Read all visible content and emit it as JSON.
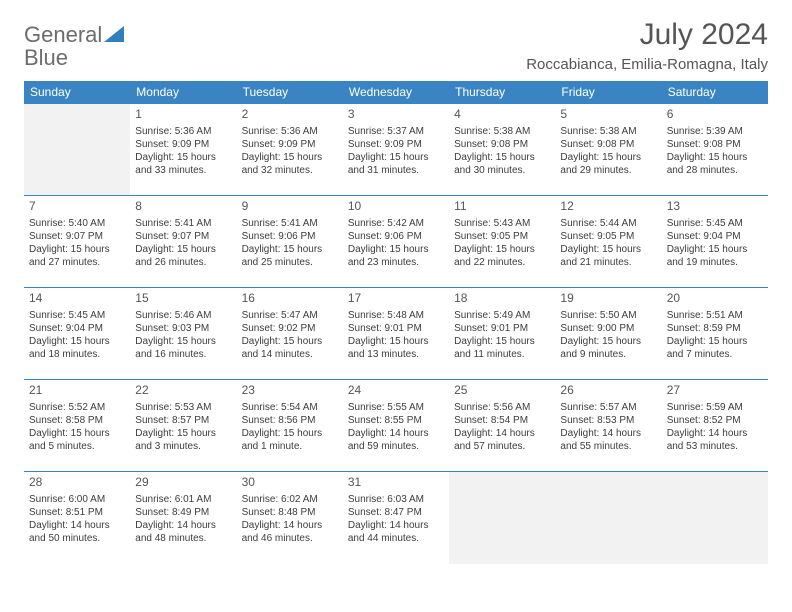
{
  "brand": {
    "part1": "General",
    "part2": "Blue"
  },
  "title": "July 2024",
  "location": "Roccabianca, Emilia-Romagna, Italy",
  "colors": {
    "header_bg": "#3b84c4",
    "header_text": "#ffffff",
    "border": "#3b84c4",
    "text": "#3d3d3d",
    "title_text": "#555555",
    "logo_grey": "#6c6c6c",
    "logo_blue": "#2f7fc1",
    "empty_bg": "#f2f2f2"
  },
  "dayNames": [
    "Sunday",
    "Monday",
    "Tuesday",
    "Wednesday",
    "Thursday",
    "Friday",
    "Saturday"
  ],
  "weeks": [
    [
      null,
      {
        "n": "1",
        "sr": "5:36 AM",
        "ss": "9:09 PM",
        "dl": "15 hours and 33 minutes."
      },
      {
        "n": "2",
        "sr": "5:36 AM",
        "ss": "9:09 PM",
        "dl": "15 hours and 32 minutes."
      },
      {
        "n": "3",
        "sr": "5:37 AM",
        "ss": "9:09 PM",
        "dl": "15 hours and 31 minutes."
      },
      {
        "n": "4",
        "sr": "5:38 AM",
        "ss": "9:08 PM",
        "dl": "15 hours and 30 minutes."
      },
      {
        "n": "5",
        "sr": "5:38 AM",
        "ss": "9:08 PM",
        "dl": "15 hours and 29 minutes."
      },
      {
        "n": "6",
        "sr": "5:39 AM",
        "ss": "9:08 PM",
        "dl": "15 hours and 28 minutes."
      }
    ],
    [
      {
        "n": "7",
        "sr": "5:40 AM",
        "ss": "9:07 PM",
        "dl": "15 hours and 27 minutes."
      },
      {
        "n": "8",
        "sr": "5:41 AM",
        "ss": "9:07 PM",
        "dl": "15 hours and 26 minutes."
      },
      {
        "n": "9",
        "sr": "5:41 AM",
        "ss": "9:06 PM",
        "dl": "15 hours and 25 minutes."
      },
      {
        "n": "10",
        "sr": "5:42 AM",
        "ss": "9:06 PM",
        "dl": "15 hours and 23 minutes."
      },
      {
        "n": "11",
        "sr": "5:43 AM",
        "ss": "9:05 PM",
        "dl": "15 hours and 22 minutes."
      },
      {
        "n": "12",
        "sr": "5:44 AM",
        "ss": "9:05 PM",
        "dl": "15 hours and 21 minutes."
      },
      {
        "n": "13",
        "sr": "5:45 AM",
        "ss": "9:04 PM",
        "dl": "15 hours and 19 minutes."
      }
    ],
    [
      {
        "n": "14",
        "sr": "5:45 AM",
        "ss": "9:04 PM",
        "dl": "15 hours and 18 minutes."
      },
      {
        "n": "15",
        "sr": "5:46 AM",
        "ss": "9:03 PM",
        "dl": "15 hours and 16 minutes."
      },
      {
        "n": "16",
        "sr": "5:47 AM",
        "ss": "9:02 PM",
        "dl": "15 hours and 14 minutes."
      },
      {
        "n": "17",
        "sr": "5:48 AM",
        "ss": "9:01 PM",
        "dl": "15 hours and 13 minutes."
      },
      {
        "n": "18",
        "sr": "5:49 AM",
        "ss": "9:01 PM",
        "dl": "15 hours and 11 minutes."
      },
      {
        "n": "19",
        "sr": "5:50 AM",
        "ss": "9:00 PM",
        "dl": "15 hours and 9 minutes."
      },
      {
        "n": "20",
        "sr": "5:51 AM",
        "ss": "8:59 PM",
        "dl": "15 hours and 7 minutes."
      }
    ],
    [
      {
        "n": "21",
        "sr": "5:52 AM",
        "ss": "8:58 PM",
        "dl": "15 hours and 5 minutes."
      },
      {
        "n": "22",
        "sr": "5:53 AM",
        "ss": "8:57 PM",
        "dl": "15 hours and 3 minutes."
      },
      {
        "n": "23",
        "sr": "5:54 AM",
        "ss": "8:56 PM",
        "dl": "15 hours and 1 minute."
      },
      {
        "n": "24",
        "sr": "5:55 AM",
        "ss": "8:55 PM",
        "dl": "14 hours and 59 minutes."
      },
      {
        "n": "25",
        "sr": "5:56 AM",
        "ss": "8:54 PM",
        "dl": "14 hours and 57 minutes."
      },
      {
        "n": "26",
        "sr": "5:57 AM",
        "ss": "8:53 PM",
        "dl": "14 hours and 55 minutes."
      },
      {
        "n": "27",
        "sr": "5:59 AM",
        "ss": "8:52 PM",
        "dl": "14 hours and 53 minutes."
      }
    ],
    [
      {
        "n": "28",
        "sr": "6:00 AM",
        "ss": "8:51 PM",
        "dl": "14 hours and 50 minutes."
      },
      {
        "n": "29",
        "sr": "6:01 AM",
        "ss": "8:49 PM",
        "dl": "14 hours and 48 minutes."
      },
      {
        "n": "30",
        "sr": "6:02 AM",
        "ss": "8:48 PM",
        "dl": "14 hours and 46 minutes."
      },
      {
        "n": "31",
        "sr": "6:03 AM",
        "ss": "8:47 PM",
        "dl": "14 hours and 44 minutes."
      },
      null,
      null,
      null
    ]
  ]
}
